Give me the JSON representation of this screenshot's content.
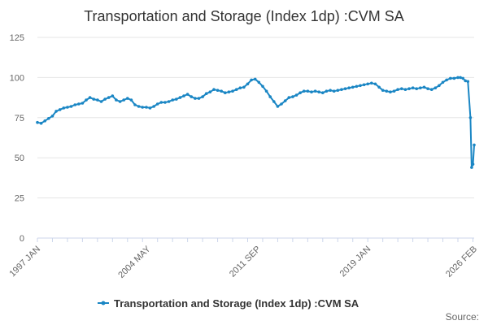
{
  "chart_data": {
    "type": "line",
    "title": "Transportation and Storage (Index 1dp) :CVM SA",
    "xlabel": "",
    "ylabel": "",
    "ylim": [
      0,
      125
    ],
    "yticks": [
      0,
      25,
      50,
      75,
      100,
      125
    ],
    "x_start": "1997-01",
    "x_end": "2026-02",
    "x_tick_labels": [
      {
        "label": "1997 JAN",
        "date": "1997-01"
      },
      {
        "label": "2004 MAY",
        "date": "2004-05"
      },
      {
        "label": "2011 SEP",
        "date": "2011-09"
      },
      {
        "label": "2019 JAN",
        "date": "2019-01"
      },
      {
        "label": "2026 FEB",
        "date": "2026-02"
      }
    ],
    "series": [
      {
        "name": "Transportation and Storage (Index 1dp) :CVM SA",
        "color": "#1a86c4",
        "points": [
          [
            "1997-01",
            72
          ],
          [
            "1997-04",
            71.5
          ],
          [
            "1997-07",
            73
          ],
          [
            "1997-10",
            74.5
          ],
          [
            "1998-01",
            76
          ],
          [
            "1998-04",
            79
          ],
          [
            "1998-07",
            80
          ],
          [
            "1998-10",
            81
          ],
          [
            "1999-01",
            81.5
          ],
          [
            "1999-04",
            82
          ],
          [
            "1999-07",
            83
          ],
          [
            "1999-10",
            83.5
          ],
          [
            "2000-01",
            84
          ],
          [
            "2000-04",
            86
          ],
          [
            "2000-07",
            87.5
          ],
          [
            "2000-10",
            86.5
          ],
          [
            "2001-01",
            86
          ],
          [
            "2001-04",
            85
          ],
          [
            "2001-07",
            86.5
          ],
          [
            "2001-10",
            87.5
          ],
          [
            "2002-01",
            88.5
          ],
          [
            "2002-04",
            86
          ],
          [
            "2002-07",
            85
          ],
          [
            "2002-10",
            86
          ],
          [
            "2003-01",
            87
          ],
          [
            "2003-04",
            86
          ],
          [
            "2003-07",
            83
          ],
          [
            "2003-10",
            82
          ],
          [
            "2004-01",
            81.5
          ],
          [
            "2004-04",
            81.5
          ],
          [
            "2004-07",
            81
          ],
          [
            "2004-10",
            82
          ],
          [
            "2005-01",
            83.5
          ],
          [
            "2005-04",
            84.5
          ],
          [
            "2005-07",
            84.5
          ],
          [
            "2005-10",
            85
          ],
          [
            "2006-01",
            86
          ],
          [
            "2006-04",
            86.5
          ],
          [
            "2006-07",
            87.5
          ],
          [
            "2006-10",
            88.5
          ],
          [
            "2007-01",
            89.5
          ],
          [
            "2007-04",
            88
          ],
          [
            "2007-07",
            87
          ],
          [
            "2007-10",
            87
          ],
          [
            "2008-01",
            88
          ],
          [
            "2008-04",
            90
          ],
          [
            "2008-07",
            91
          ],
          [
            "2008-10",
            92.5
          ],
          [
            "2009-01",
            92
          ],
          [
            "2009-04",
            91.5
          ],
          [
            "2009-07",
            90.5
          ],
          [
            "2009-10",
            91
          ],
          [
            "2010-01",
            91.5
          ],
          [
            "2010-04",
            92.5
          ],
          [
            "2010-07",
            93.5
          ],
          [
            "2010-10",
            94
          ],
          [
            "2011-01",
            96
          ],
          [
            "2011-04",
            98.5
          ],
          [
            "2011-07",
            99
          ],
          [
            "2011-10",
            97
          ],
          [
            "2012-01",
            94.5
          ],
          [
            "2012-04",
            91.5
          ],
          [
            "2012-07",
            88
          ],
          [
            "2012-10",
            85
          ],
          [
            "2013-01",
            82
          ],
          [
            "2013-04",
            83.5
          ],
          [
            "2013-07",
            85.5
          ],
          [
            "2013-10",
            87.5
          ],
          [
            "2014-01",
            88
          ],
          [
            "2014-04",
            89
          ],
          [
            "2014-07",
            90.5
          ],
          [
            "2014-10",
            91.5
          ],
          [
            "2015-01",
            91.5
          ],
          [
            "2015-04",
            91
          ],
          [
            "2015-07",
            91.5
          ],
          [
            "2015-10",
            91
          ],
          [
            "2016-01",
            90.5
          ],
          [
            "2016-04",
            91.5
          ],
          [
            "2016-07",
            92
          ],
          [
            "2016-10",
            91.5
          ],
          [
            "2017-01",
            92
          ],
          [
            "2017-04",
            92.5
          ],
          [
            "2017-07",
            93
          ],
          [
            "2017-10",
            93.5
          ],
          [
            "2018-01",
            94
          ],
          [
            "2018-04",
            94.5
          ],
          [
            "2018-07",
            95
          ],
          [
            "2018-10",
            95.5
          ],
          [
            "2019-01",
            96
          ],
          [
            "2019-04",
            96.5
          ],
          [
            "2019-07",
            96
          ],
          [
            "2019-10",
            94
          ],
          [
            "2020-01",
            92
          ],
          [
            "2020-04",
            91.5
          ],
          [
            "2020-07",
            91
          ],
          [
            "2020-10",
            91.5
          ],
          [
            "2021-01",
            92.5
          ],
          [
            "2021-04",
            93
          ],
          [
            "2021-07",
            92.5
          ],
          [
            "2021-10",
            93
          ],
          [
            "2022-01",
            93.5
          ],
          [
            "2022-04",
            93
          ],
          [
            "2022-07",
            93.5
          ],
          [
            "2022-10",
            94
          ],
          [
            "2023-01",
            93
          ],
          [
            "2023-04",
            92.5
          ],
          [
            "2023-07",
            93.5
          ],
          [
            "2023-10",
            95
          ],
          [
            "2024-01",
            97
          ],
          [
            "2024-04",
            98.5
          ],
          [
            "2024-07",
            99.5
          ],
          [
            "2024-10",
            99.5
          ],
          [
            "2025-01",
            100
          ],
          [
            "2025-03",
            100
          ],
          [
            "2025-05",
            99.5
          ],
          [
            "2025-07",
            98
          ],
          [
            "2025-09",
            97.5
          ],
          [
            "2025-11",
            75
          ],
          [
            "2025-12",
            44
          ],
          [
            "2026-01",
            46
          ],
          [
            "2026-02",
            58
          ]
        ]
      }
    ],
    "legend": "bottom-center",
    "source_label": "Source:"
  }
}
